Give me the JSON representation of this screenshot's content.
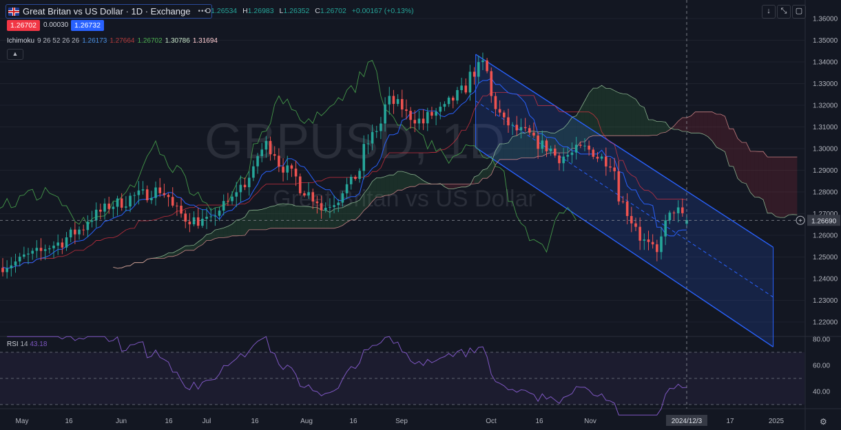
{
  "header": {
    "title": "Great Britan vs US Dollar · 1D · Exchange",
    "more_icon": "ellipsis-icon",
    "ohlc": {
      "o_label": "O",
      "o": "1.26534",
      "h_label": "H",
      "h": "1.26983",
      "l_label": "L",
      "l": "1.26352",
      "c_label": "C",
      "c": "1.26702",
      "change": "+0.00167 (+0.13%)"
    },
    "sell_price": "1.26702",
    "spread": "0.00030",
    "buy_price": "1.26732"
  },
  "indicator": {
    "name": "Ichimoku",
    "params": "9 26 52 26 26",
    "v1": "1.26173",
    "v2": "1.27664",
    "v3": "1.26702",
    "v4": "1.30786",
    "v5": "1.31694"
  },
  "rsi": {
    "name": "RSI",
    "period": "14",
    "value": "43.18"
  },
  "watermark": {
    "symbol": "GBPUSD, 1D",
    "name": "Great Britan vs US Dollar"
  },
  "toolbar": {
    "down_icon": "arrow-down-icon",
    "collapse_icon": "collapse-icon",
    "fullscreen_icon": "fullscreen-icon",
    "settings_icon": "gear-icon"
  },
  "colors": {
    "up": "#26a69a",
    "down": "#ef5350",
    "tenkan": "#2962ff",
    "kijun": "#f23645",
    "chikou": "#4caf50",
    "spanA": "#a5d6a7",
    "spanB": "#ef9a9a",
    "channel": "#2962ff",
    "rsi": "#7e57c2",
    "background": "#131722"
  },
  "chart_data": [
    {
      "type": "candlestick",
      "title": "Great Britan vs US Dollar · 1D · Exchange",
      "ylim": [
        1.215,
        1.365
      ],
      "y_ticks": [
        "1.36000",
        "1.35000",
        "1.34000",
        "1.33000",
        "1.32000",
        "1.31000",
        "1.30000",
        "1.29000",
        "1.28000",
        "1.27000",
        "1.26000",
        "1.25000",
        "1.24000",
        "1.23000",
        "1.22000"
      ],
      "x_ticks": [
        "May",
        "16",
        "Jun",
        "16",
        "Jul",
        "16",
        "Aug",
        "16",
        "Sep",
        "Oct",
        "16",
        "Nov",
        "2024/12/3",
        "17",
        "2025"
      ],
      "current_price": "1.26690",
      "close_series_approx": [
        [
          "2024-04-22",
          1.246
        ],
        [
          "2024-05-01",
          1.251
        ],
        [
          "2024-05-13",
          1.259
        ],
        [
          "2024-05-24",
          1.272
        ],
        [
          "2024-06-04",
          1.278
        ],
        [
          "2024-06-12",
          1.281
        ],
        [
          "2024-06-20",
          1.268
        ],
        [
          "2024-06-28",
          1.266
        ],
        [
          "2024-07-10",
          1.284
        ],
        [
          "2024-07-17",
          1.302
        ],
        [
          "2024-07-25",
          1.288
        ],
        [
          "2024-08-05",
          1.272
        ],
        [
          "2024-08-14",
          1.284
        ],
        [
          "2024-08-22",
          1.309
        ],
        [
          "2024-08-27",
          1.322
        ],
        [
          "2024-09-06",
          1.312
        ],
        [
          "2024-09-16",
          1.321
        ],
        [
          "2024-09-26",
          1.339
        ],
        [
          "2024-10-03",
          1.312
        ],
        [
          "2024-10-10",
          1.307
        ],
        [
          "2024-10-22",
          1.296
        ],
        [
          "2024-10-30",
          1.3
        ],
        [
          "2024-11-07",
          1.294
        ],
        [
          "2024-11-14",
          1.267
        ],
        [
          "2024-11-22",
          1.251
        ],
        [
          "2024-11-28",
          1.272
        ],
        [
          "2024-12-03",
          1.267
        ]
      ],
      "indicators": {
        "ichimoku": "9 26 52 26 26",
        "regression_channel": "descending channel from 2024-09-26 to 2024-12-31"
      }
    },
    {
      "type": "line",
      "title": "RSI 14",
      "ylim": [
        22,
        82
      ],
      "y_ticks": [
        "80.00",
        "60.00",
        "40.00"
      ],
      "levels": [
        70,
        50,
        30
      ],
      "last_value": 43.18
    }
  ]
}
